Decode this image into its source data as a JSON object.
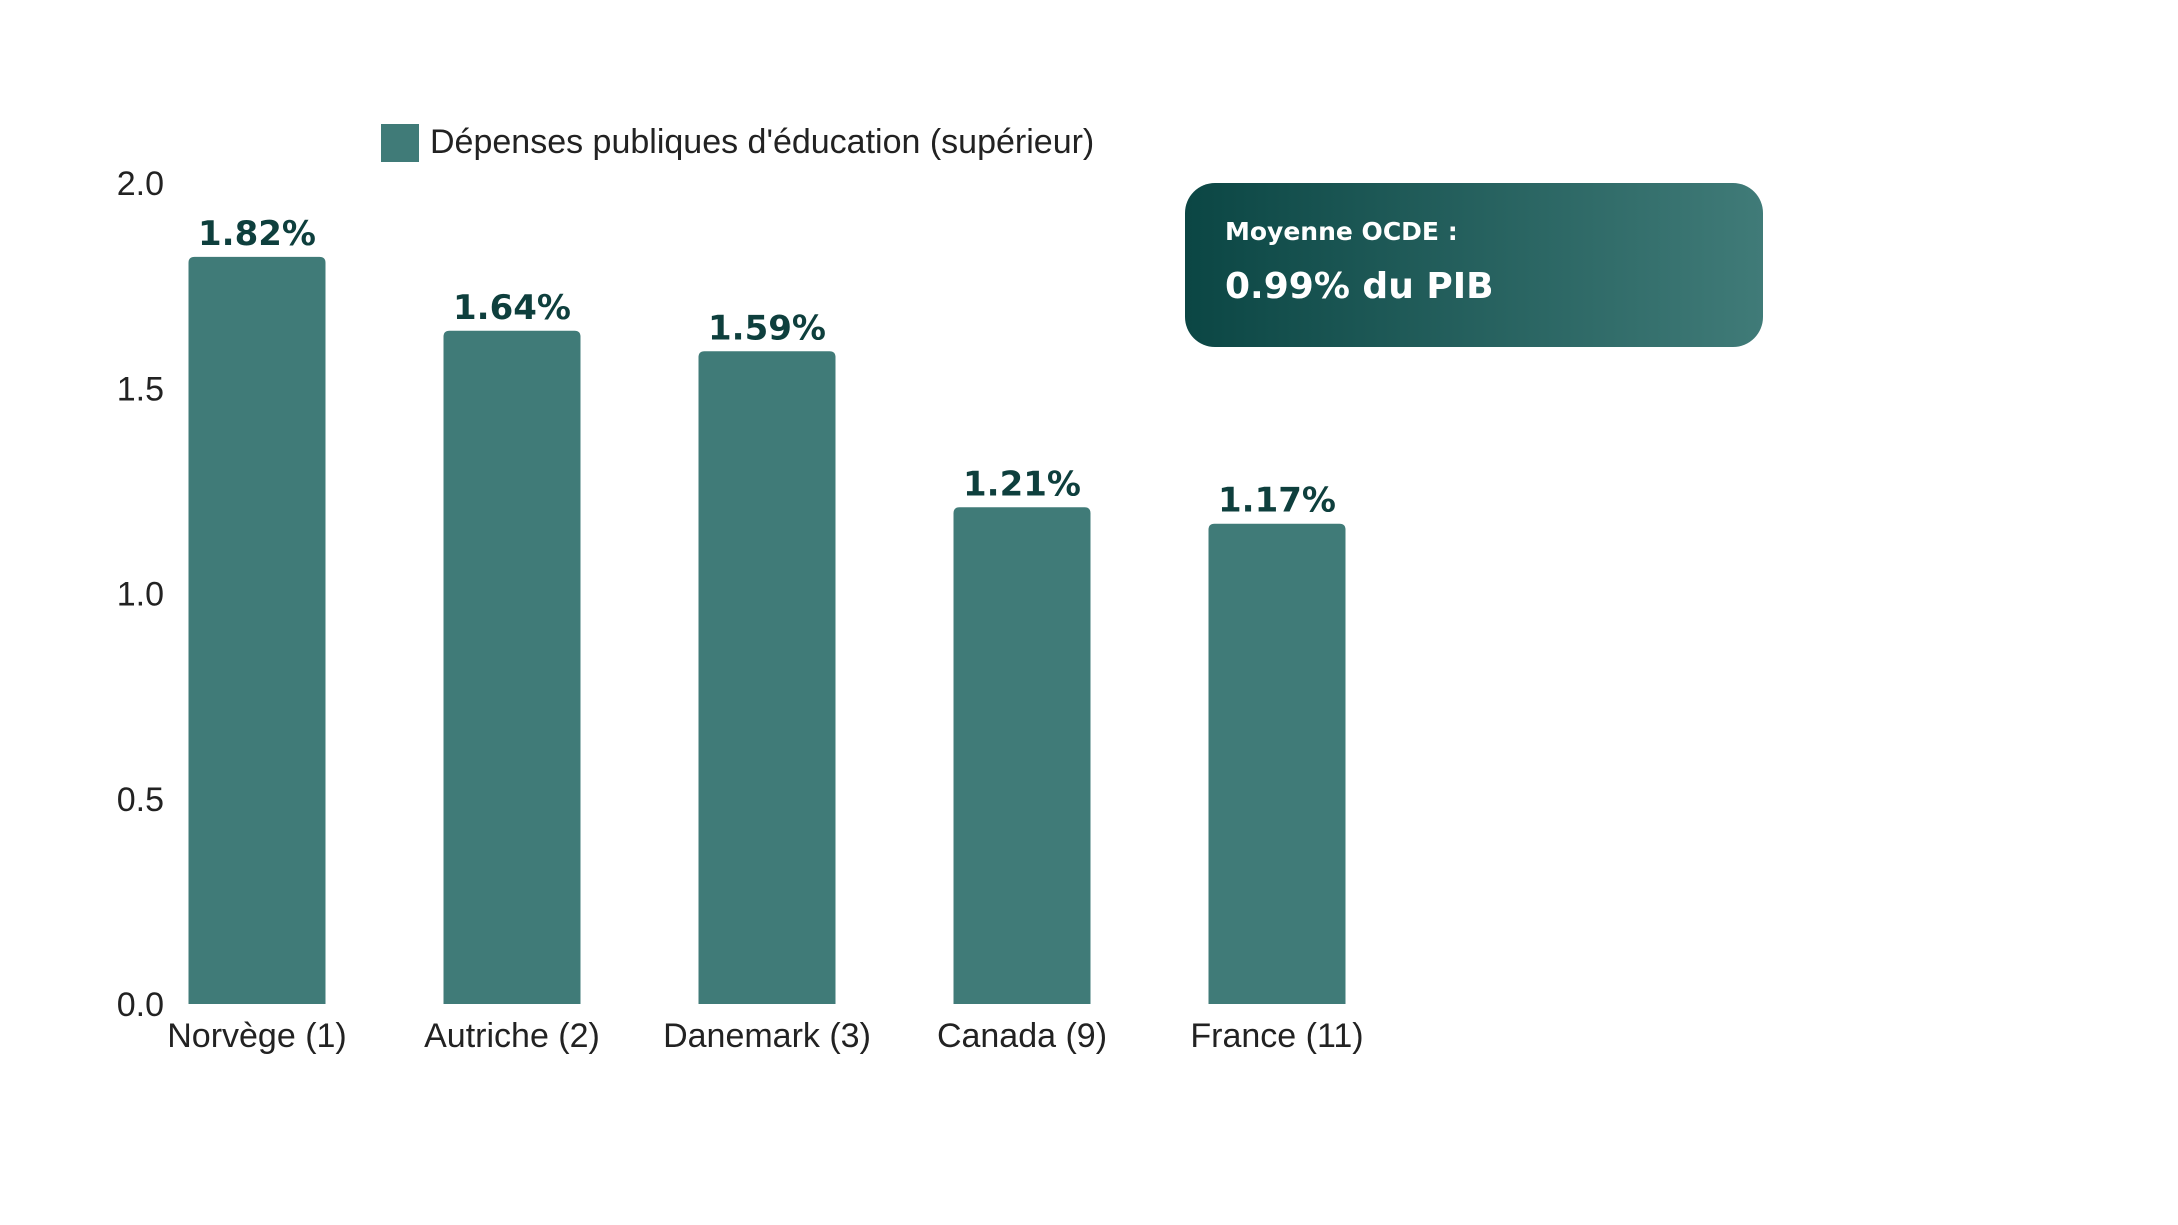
{
  "chart_data": {
    "type": "bar",
    "categories": [
      "Norvège (1)",
      "Autriche (2)",
      "Danemark (3)",
      "Canada (9)",
      "France (11)"
    ],
    "series": [
      {
        "name": "Dépenses publiques d'éducation (supérieur)",
        "values": [
          1.82,
          1.64,
          1.59,
          1.21,
          1.17
        ],
        "data_labels": [
          "1.82%",
          "1.64%",
          "1.59%",
          "1.21%",
          "1.17%"
        ],
        "color": "#407b78"
      }
    ],
    "ylim": [
      0,
      2.0
    ],
    "yticks": [
      "0.0",
      "0.5",
      "1.0",
      "1.5",
      "2.0"
    ],
    "xlabel": "",
    "ylabel": "",
    "grid": false,
    "legend": "top-left"
  },
  "annotation": {
    "title": "Moyenne OCDE :",
    "value": "0.99% du PIB",
    "gradient_start": "#0b4644",
    "gradient_end": "#407b78"
  },
  "colors": {
    "bar": "#407b78",
    "data_label": "#0e3f3d",
    "text": "#222222"
  }
}
